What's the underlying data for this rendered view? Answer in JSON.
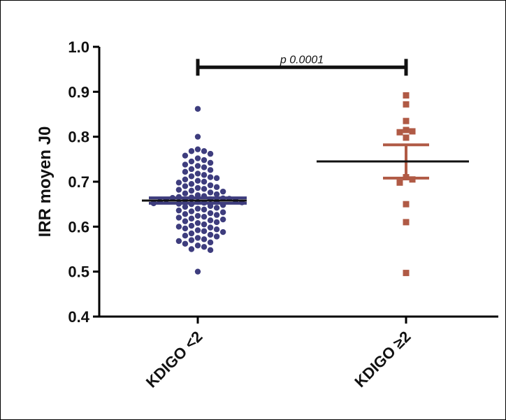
{
  "chart_data": {
    "type": "scatter",
    "title": "",
    "ylabel": "IRR moyen J0",
    "xlabel": "",
    "ylim": [
      0.4,
      1.0
    ],
    "yticks": [
      "0.4",
      "0.5",
      "0.6",
      "0.7",
      "0.8",
      "0.9",
      "1.0"
    ],
    "categories": [
      "KDIGO <2",
      "KDIGO ≥2"
    ],
    "grid": false,
    "legend": "none",
    "series": [
      {
        "color": "#3e3d7e",
        "marker": "circle",
        "mean": 0.658,
        "error": [
          0.652,
          0.664
        ],
        "points": [
          0.862,
          0.8,
          0.772,
          0.768,
          0.768,
          0.762,
          0.758,
          0.752,
          0.748,
          0.745,
          0.742,
          0.738,
          0.735,
          0.732,
          0.728,
          0.726,
          0.722,
          0.718,
          0.715,
          0.712,
          0.71,
          0.708,
          0.705,
          0.702,
          0.7,
          0.698,
          0.695,
          0.692,
          0.69,
          0.688,
          0.686,
          0.684,
          0.682,
          0.68,
          0.678,
          0.676,
          0.674,
          0.672,
          0.67,
          0.668,
          0.666,
          0.665,
          0.664,
          0.663,
          0.662,
          0.661,
          0.66,
          0.659,
          0.658,
          0.657,
          0.656,
          0.655,
          0.654,
          0.653,
          0.652,
          0.651,
          0.65,
          0.648,
          0.646,
          0.644,
          0.642,
          0.64,
          0.638,
          0.636,
          0.634,
          0.632,
          0.63,
          0.628,
          0.626,
          0.624,
          0.622,
          0.62,
          0.618,
          0.616,
          0.614,
          0.612,
          0.61,
          0.608,
          0.605,
          0.602,
          0.6,
          0.598,
          0.596,
          0.594,
          0.592,
          0.59,
          0.588,
          0.585,
          0.582,
          0.58,
          0.578,
          0.575,
          0.572,
          0.57,
          0.568,
          0.565,
          0.562,
          0.558,
          0.555,
          0.55,
          0.548,
          0.5
        ]
      },
      {
        "color": "#b05a45",
        "marker": "square",
        "mean": 0.745,
        "error": [
          0.708,
          0.782
        ],
        "points": [
          0.892,
          0.872,
          0.835,
          0.815,
          0.812,
          0.81,
          0.798,
          0.71,
          0.705,
          0.698,
          0.65,
          0.61,
          0.497
        ]
      }
    ],
    "annotation": {
      "text": "p 0.0001",
      "from": 0,
      "to": 1,
      "y": 0.97
    }
  }
}
